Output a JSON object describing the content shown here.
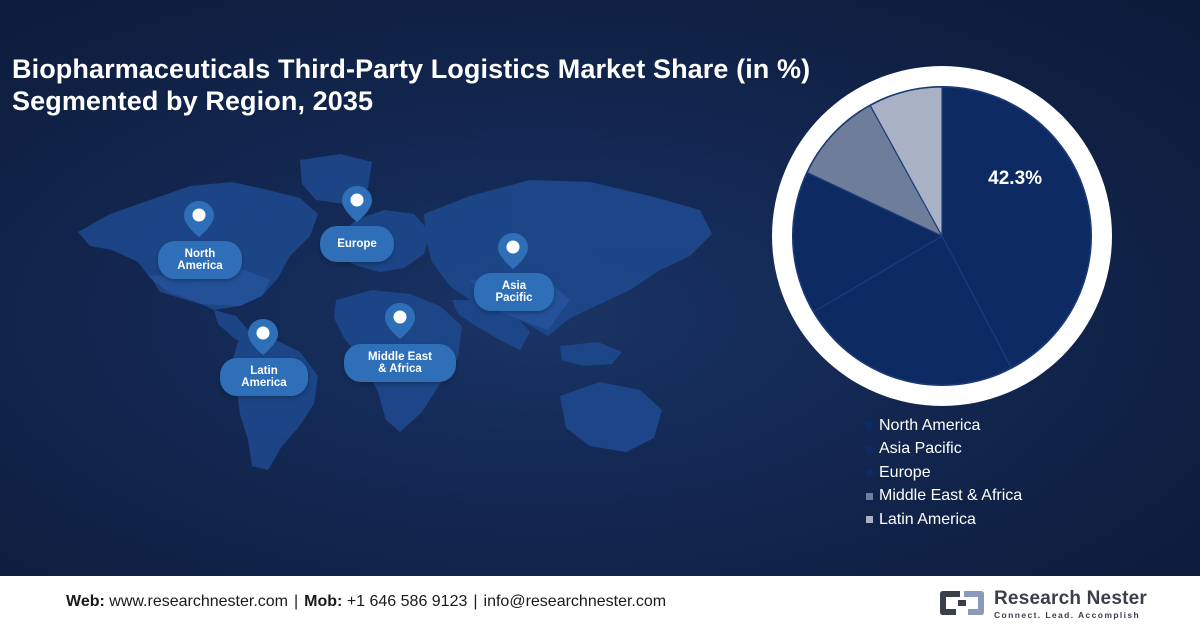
{
  "title_line1": "Biopharmaceuticals Third-Party Logistics Market Share (in %)",
  "title_line2": "Segmented by Region, 2035",
  "map_pins": [
    {
      "id": "north-america",
      "label_line1": "North",
      "label_line2": "America"
    },
    {
      "id": "europe",
      "label_line1": "Europe",
      "label_line2": ""
    },
    {
      "id": "asia-pacific",
      "label_line1": "Asia",
      "label_line2": "Pacific"
    },
    {
      "id": "latin-america",
      "label_line1": "Latin",
      "label_line2": "America"
    },
    {
      "id": "middle-east-africa",
      "label_line1": "Middle East",
      "label_line2": "& Africa"
    }
  ],
  "chart_data": {
    "type": "pie",
    "title": "",
    "slices": [
      {
        "name": "North America",
        "value": 42.3,
        "color": "#0d2a62",
        "label": "42.3%"
      },
      {
        "name": "Asia Pacific",
        "value": 24.2,
        "color": "#0d2a62",
        "label": ""
      },
      {
        "name": "Europe",
        "value": 15.5,
        "color": "#0d2a62",
        "label": ""
      },
      {
        "name": "Middle East & Africa",
        "value": 10.0,
        "color": "#6e7d9a",
        "label": ""
      },
      {
        "name": "Latin America",
        "value": 8.0,
        "color": "#a9b2c4",
        "label": ""
      }
    ],
    "slice_border_color": "#1c3c7a",
    "ring_color": "#ffffff",
    "legend": {
      "placement": "bottom-right",
      "items": [
        {
          "name": "North America",
          "color": "#0d2a62"
        },
        {
          "name": "Asia Pacific",
          "color": "#0d2a62"
        },
        {
          "name": "Europe",
          "color": "#0d2a62"
        },
        {
          "name": "Middle East & Africa",
          "color": "#6e7d9a"
        },
        {
          "name": "Latin America",
          "color": "#a9b2c4"
        }
      ]
    }
  },
  "footer": {
    "web_label": "Web:",
    "web_value": "www.researchnester.com",
    "mob_label": "Mob:",
    "mob_value": "+1 646 586 9123",
    "email": "info@researchnester.com",
    "brand_name": "Research Nester",
    "brand_tagline": "Connect. Lead. Accomplish"
  },
  "colors": {
    "background": "#12264f",
    "map_land": "#1e4a8f",
    "pin": "#2f6fb8",
    "footer_bg": "#ffffff"
  }
}
